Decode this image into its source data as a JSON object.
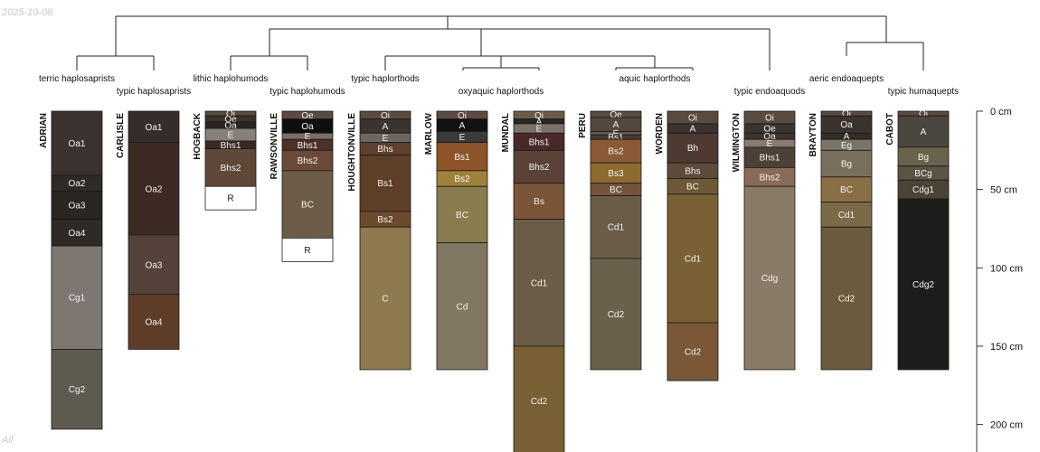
{
  "date_label": "2025-10-08",
  "footer_label": "All",
  "chart_data": {
    "type": "soil-profile-sketch",
    "depth_unit": "cm",
    "ylim": [
      0,
      220
    ],
    "depth_ticks": [
      {
        "depth": 0,
        "label": "0 cm"
      },
      {
        "depth": 50,
        "label": "50 cm"
      },
      {
        "depth": 100,
        "label": "100 cm"
      },
      {
        "depth": 150,
        "label": "150 cm"
      },
      {
        "depth": 200,
        "label": "200 cm"
      }
    ],
    "taxa": [
      {
        "label": "terric haplosaprists"
      },
      {
        "label": "typic haplosaprists"
      },
      {
        "label": "lithic haplohumods"
      },
      {
        "label": "typic haplohumods"
      },
      {
        "label": "typic haplorthods"
      },
      {
        "label": "oxyaquic haplorthods"
      },
      {
        "label": "aquic haplorthods"
      },
      {
        "label": "typic endoaquods"
      },
      {
        "label": "aeric endoaquepts"
      },
      {
        "label": "typic humaquepts"
      }
    ],
    "profiles": [
      {
        "name": "ADRIAN",
        "horizons": [
          {
            "name": "Oa1",
            "top": 0,
            "bottom": 41,
            "color": "#3b3230"
          },
          {
            "name": "Oa2",
            "top": 41,
            "bottom": 51,
            "color": "#2e2a26"
          },
          {
            "name": "Oa3",
            "top": 51,
            "bottom": 69,
            "color": "#2a2622"
          },
          {
            "name": "Oa4",
            "top": 69,
            "bottom": 86,
            "color": "#2f2a25"
          },
          {
            "name": "Cg1",
            "top": 86,
            "bottom": 152,
            "color": "#7e7670"
          },
          {
            "name": "Cg2",
            "top": 152,
            "bottom": 203,
            "color": "#5f5a50"
          }
        ]
      },
      {
        "name": "CARLISLE",
        "horizons": [
          {
            "name": "Oa1",
            "top": 0,
            "bottom": 20,
            "color": "#352d2a"
          },
          {
            "name": "Oa2",
            "top": 20,
            "bottom": 79,
            "color": "#3e2a24"
          },
          {
            "name": "Oa3",
            "top": 79,
            "bottom": 117,
            "color": "#55423a"
          },
          {
            "name": "Oa4",
            "top": 117,
            "bottom": 152,
            "color": "#5d3d28"
          }
        ]
      },
      {
        "name": "HOGBACK",
        "horizons": [
          {
            "name": "Oi",
            "top": 0,
            "bottom": 3,
            "color": "#5a4a40"
          },
          {
            "name": "Oe",
            "top": 3,
            "bottom": 7,
            "color": "#3a302c"
          },
          {
            "name": "Oa",
            "top": 7,
            "bottom": 11,
            "color": "#2c2622"
          },
          {
            "name": "E",
            "top": 11,
            "bottom": 19,
            "color": "#87817a"
          },
          {
            "name": "Bhs1",
            "top": 19,
            "bottom": 24,
            "color": "#3a2824"
          },
          {
            "name": "Bhs2",
            "top": 24,
            "bottom": 48,
            "color": "#5f4838"
          },
          {
            "name": "R",
            "top": 48,
            "bottom": 63,
            "color": "#ffffff"
          }
        ]
      },
      {
        "name": "RAWSONVILLE",
        "horizons": [
          {
            "name": "Oe",
            "top": 0,
            "bottom": 5,
            "color": "#5a4a40"
          },
          {
            "name": "Oa",
            "top": 5,
            "bottom": 14,
            "color": "#0f0f0f"
          },
          {
            "name": "E",
            "top": 14,
            "bottom": 18,
            "color": "#7a6f6a"
          },
          {
            "name": "Bhs1",
            "top": 18,
            "bottom": 25,
            "color": "#4f2f29"
          },
          {
            "name": "Bhs2",
            "top": 25,
            "bottom": 38,
            "color": "#6b4a38"
          },
          {
            "name": "BC",
            "top": 38,
            "bottom": 81,
            "color": "#6c5c47"
          },
          {
            "name": "R",
            "top": 81,
            "bottom": 96,
            "color": "#ffffff"
          }
        ]
      },
      {
        "name": "HOUGHTONVILLE",
        "horizons": [
          {
            "name": "Oi",
            "top": 0,
            "bottom": 5,
            "color": "#5a4a40"
          },
          {
            "name": "A",
            "top": 5,
            "bottom": 14,
            "color": "#3b3330"
          },
          {
            "name": "E",
            "top": 14,
            "bottom": 20,
            "color": "#6e6660"
          },
          {
            "name": "Bhs",
            "top": 20,
            "bottom": 28,
            "color": "#60402f"
          },
          {
            "name": "Bs1",
            "top": 28,
            "bottom": 64,
            "color": "#5e3f27"
          },
          {
            "name": "Bs2",
            "top": 64,
            "bottom": 74,
            "color": "#6e4a2c"
          },
          {
            "name": "C",
            "top": 74,
            "bottom": 165,
            "color": "#8e7a4f"
          }
        ]
      },
      {
        "name": "MARLOW",
        "horizons": [
          {
            "name": "Oi",
            "top": 0,
            "bottom": 5,
            "color": "#5a4a40"
          },
          {
            "name": "A",
            "top": 5,
            "bottom": 13,
            "color": "#121212"
          },
          {
            "name": "E",
            "top": 13,
            "bottom": 20,
            "color": "#383a3a"
          },
          {
            "name": "Bs1",
            "top": 20,
            "bottom": 38,
            "color": "#8e552a"
          },
          {
            "name": "Bs2",
            "top": 38,
            "bottom": 48,
            "color": "#a0813c"
          },
          {
            "name": "BC",
            "top": 48,
            "bottom": 84,
            "color": "#8a7c4e"
          },
          {
            "name": "Cd",
            "top": 84,
            "bottom": 165,
            "color": "#827862"
          }
        ]
      },
      {
        "name": "MUNDAL",
        "horizons": [
          {
            "name": "Oi",
            "top": 0,
            "bottom": 5,
            "color": "#6a5a48"
          },
          {
            "name": "A",
            "top": 5,
            "bottom": 8,
            "color": "#2c2622"
          },
          {
            "name": "E",
            "top": 8,
            "bottom": 14,
            "color": "#7a716a"
          },
          {
            "name": "Bhs1",
            "top": 14,
            "bottom": 25,
            "color": "#4a2a28"
          },
          {
            "name": "Bhs2",
            "top": 25,
            "bottom": 46,
            "color": "#5a4238"
          },
          {
            "name": "Bs",
            "top": 46,
            "bottom": 69,
            "color": "#7a5538"
          },
          {
            "name": "Cd1",
            "top": 69,
            "bottom": 150,
            "color": "#6b5c45"
          },
          {
            "name": "Cd2",
            "top": 150,
            "bottom": 220,
            "color": "#785f34"
          }
        ]
      },
      {
        "name": "PERU",
        "horizons": [
          {
            "name": "Oe",
            "top": 0,
            "bottom": 4,
            "color": "#5a4a40"
          },
          {
            "name": "A",
            "top": 4,
            "bottom": 13,
            "color": "#55483f"
          },
          {
            "name": "E",
            "top": 13,
            "bottom": 15,
            "color": "#6a5f55"
          },
          {
            "name": "Bs1",
            "top": 15,
            "bottom": 18,
            "color": "#4a3a30"
          },
          {
            "name": "Bs2",
            "top": 18,
            "bottom": 33,
            "color": "#8a5a36"
          },
          {
            "name": "Bs3",
            "top": 33,
            "bottom": 46,
            "color": "#8e6a2f"
          },
          {
            "name": "BC",
            "top": 46,
            "bottom": 54,
            "color": "#73553d"
          },
          {
            "name": "Cd1",
            "top": 54,
            "bottom": 94,
            "color": "#6b5c45"
          },
          {
            "name": "Cd2",
            "top": 94,
            "bottom": 165,
            "color": "#6a614c"
          }
        ]
      },
      {
        "name": "WORDEN",
        "horizons": [
          {
            "name": "Oi",
            "top": 0,
            "bottom": 8,
            "color": "#5a4a40"
          },
          {
            "name": "A",
            "top": 8,
            "bottom": 14,
            "color": "#3b3330"
          },
          {
            "name": "Bh",
            "top": 14,
            "bottom": 33,
            "color": "#4e3a32"
          },
          {
            "name": "Bhs",
            "top": 33,
            "bottom": 43,
            "color": "#5e4a3a"
          },
          {
            "name": "BC",
            "top": 43,
            "bottom": 53,
            "color": "#6e5836"
          },
          {
            "name": "Cd1",
            "top": 53,
            "bottom": 135,
            "color": "#7a6035"
          },
          {
            "name": "Cd2",
            "top": 135,
            "bottom": 172,
            "color": "#7a5737"
          }
        ]
      },
      {
        "name": "WILMINGTON",
        "horizons": [
          {
            "name": "Oi",
            "top": 0,
            "bottom": 8,
            "color": "#5a4a40"
          },
          {
            "name": "Oe",
            "top": 8,
            "bottom": 14,
            "color": "#3b3330"
          },
          {
            "name": "Oa",
            "top": 14,
            "bottom": 18,
            "color": "#3a3330"
          },
          {
            "name": "E",
            "top": 18,
            "bottom": 23,
            "color": "#8a7a70"
          },
          {
            "name": "Bhs1",
            "top": 23,
            "bottom": 36,
            "color": "#4e4038"
          },
          {
            "name": "Bhs2",
            "top": 36,
            "bottom": 48,
            "color": "#8a6a58"
          },
          {
            "name": "Cdg",
            "top": 48,
            "bottom": 165,
            "color": "#8a7a68"
          }
        ]
      },
      {
        "name": "BRAYTON",
        "horizons": [
          {
            "name": "Oi",
            "top": 0,
            "bottom": 3,
            "color": "#5a4a40"
          },
          {
            "name": "Oa",
            "top": 3,
            "bottom": 14,
            "color": "#3b3330"
          },
          {
            "name": "A",
            "top": 14,
            "bottom": 18,
            "color": "#342c28"
          },
          {
            "name": "Eg",
            "top": 18,
            "bottom": 25,
            "color": "#7a7468"
          },
          {
            "name": "Bg",
            "top": 25,
            "bottom": 42,
            "color": "#7a6e5c"
          },
          {
            "name": "BC",
            "top": 42,
            "bottom": 58,
            "color": "#8a6e45"
          },
          {
            "name": "Cd1",
            "top": 58,
            "bottom": 74,
            "color": "#7a6a48"
          },
          {
            "name": "Cd2",
            "top": 74,
            "bottom": 165,
            "color": "#6b5a3c"
          }
        ]
      },
      {
        "name": "CABOT",
        "horizons": [
          {
            "name": "Oi",
            "top": 0,
            "bottom": 3,
            "color": "#5a4a40"
          },
          {
            "name": "A",
            "top": 3,
            "bottom": 23,
            "color": "#4a4640"
          },
          {
            "name": "Bg",
            "top": 23,
            "bottom": 35,
            "color": "#6a634c"
          },
          {
            "name": "BCg",
            "top": 35,
            "bottom": 44,
            "color": "#5a5442"
          },
          {
            "name": "Cdg1",
            "top": 44,
            "bottom": 56,
            "color": "#4a4436"
          },
          {
            "name": "Cdg2",
            "top": 56,
            "bottom": 165,
            "color": "#1c1d1b"
          }
        ]
      }
    ]
  }
}
